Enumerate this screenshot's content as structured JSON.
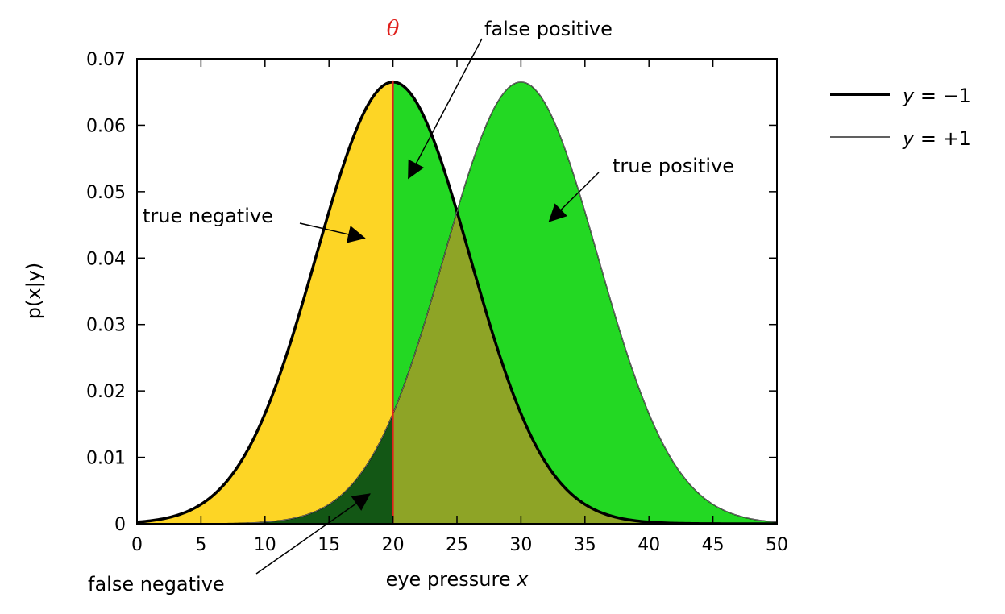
{
  "chart_data": {
    "type": "area",
    "xlabel_text": "eye pressure ",
    "xlabel_var": "x",
    "ylabel": "p(x|y)",
    "xlim": [
      0,
      50
    ],
    "ylim": [
      0,
      0.07
    ],
    "xticks": [
      0,
      5,
      10,
      15,
      20,
      25,
      30,
      35,
      40,
      45,
      50
    ],
    "yticks": [
      0,
      0.01,
      0.02,
      0.03,
      0.04,
      0.05,
      0.06,
      0.07
    ],
    "ytick_labels": [
      "0",
      "0.01",
      "0.02",
      "0.03",
      "0.04",
      "0.05",
      "0.06",
      "0.07"
    ],
    "threshold": {
      "label": "θ",
      "x": 20,
      "color": "#e0201c"
    },
    "series": [
      {
        "name_var": "y",
        "name_rest": " = −1",
        "distribution": "normal",
        "mean": 20,
        "std": 6,
        "peak": 0.0665,
        "line": "thick"
      },
      {
        "name_var": "y",
        "name_rest": " = +1",
        "distribution": "normal",
        "mean": 30,
        "std": 6,
        "peak": 0.0665,
        "line": "thin"
      }
    ],
    "regions": [
      {
        "name": "true negative",
        "color": "#fdd525"
      },
      {
        "name": "false positive",
        "color": "#fe7a24"
      },
      {
        "name": "true positive",
        "color": "#23d823"
      },
      {
        "name": "false negative",
        "color": "#135715"
      },
      {
        "name": "overlap",
        "color": "#8ea426"
      }
    ],
    "annotations": [
      {
        "id": "tn",
        "text": "true negative",
        "target": [
          17.8,
          0.043
        ]
      },
      {
        "id": "fp",
        "text": "false positive",
        "target": [
          21.2,
          0.052
        ]
      },
      {
        "id": "tp",
        "text": "true positive",
        "target": [
          32.2,
          0.0455
        ]
      },
      {
        "id": "fn",
        "text": "false negative",
        "target": [
          18.2,
          0.0045
        ]
      }
    ],
    "grid": false,
    "legend": "outside-right"
  }
}
